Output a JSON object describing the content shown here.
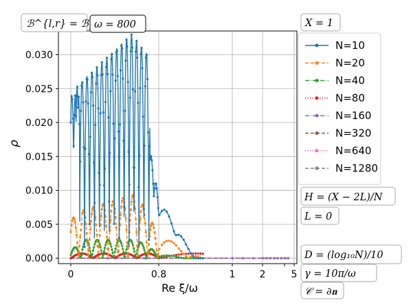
{
  "chart_data": {
    "type": "line",
    "xlabel": "Re ξ/ω",
    "ylabel": "ρ",
    "yticks": [
      "0.000",
      "0.005",
      "0.010",
      "0.015",
      "0.020",
      "0.025",
      "0.030"
    ],
    "ylim": [
      -0.0008,
      0.0335
    ],
    "xticks": [
      "0",
      "0.8",
      "1",
      "2",
      "4",
      "5"
    ],
    "xscale": "piecewise: linear 0–1 over left 0.8 of axis, compressed beyond 1",
    "grid": true,
    "legend_position": "right",
    "annotations": {
      "top_left": "ℬ^{l,r} = ℬ_j^{l,r}",
      "omega": "ω = 800",
      "X": "X = 1",
      "H": "H = (X − 2L)/N",
      "L": "L = 0",
      "D": "D = (log₁₀N)/10",
      "gamma": "γ = 10π/ω",
      "C": "𝒞 = ∂𝐧"
    },
    "series": [
      {
        "name": "N=10",
        "color": "#1f77b4",
        "style": "solid",
        "marker": "dot",
        "description": "oscillating, peaks rising 0.025→0.033 near x≈0.55, troughs reach 0 around 0.1–0.7, decays to 0 near x≈0.9"
      },
      {
        "name": "N=20",
        "color": "#ff7f0e",
        "style": "dashed",
        "marker": "dot",
        "description": "arches with peaks ~0.007–0.0095, zeros between, decays by x≈0.9"
      },
      {
        "name": "N=40",
        "color": "#2ca02c",
        "style": "dashdot",
        "marker": "dot",
        "description": "arches ~0.0015–0.0027"
      },
      {
        "name": "N=80",
        "color": "#d62728",
        "style": "dotted",
        "marker": "tri",
        "description": "near zero (≤0.0008)"
      },
      {
        "name": "N=160",
        "color": "#9467bd",
        "style": "dashdot",
        "marker": "dot",
        "description": "≈0"
      },
      {
        "name": "N=320",
        "color": "#8c564b",
        "style": "dashed",
        "marker": "dot",
        "description": "≈0"
      },
      {
        "name": "N=640",
        "color": "#e377c2",
        "style": "dotted",
        "marker": "dot",
        "description": "≈0"
      },
      {
        "name": "N=1280",
        "color": "#7f7f7f",
        "style": "dashed",
        "marker": "dot",
        "description": "≈0"
      }
    ]
  }
}
